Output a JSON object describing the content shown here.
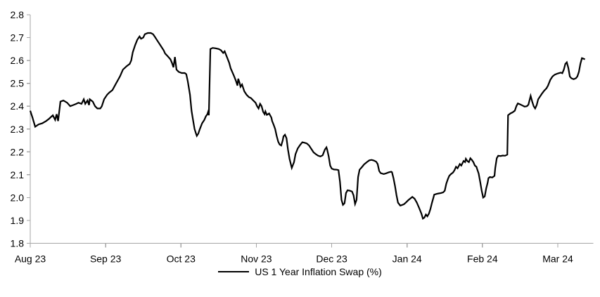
{
  "chart_data": {
    "type": "line",
    "title": "",
    "xlabel": "",
    "ylabel": "",
    "grid": false,
    "legend_position": "bottom-center",
    "axis_color": "#a6a6a6",
    "text_color": "#000000",
    "y_range": [
      1.8,
      2.8
    ],
    "y_ticks": [
      1.8,
      1.9,
      2.0,
      2.1,
      2.2,
      2.3,
      2.4,
      2.5,
      2.6,
      2.7,
      2.8
    ],
    "x_tick_labels": [
      "Aug 23",
      "Sep 23",
      "Oct 23",
      "Nov 23",
      "Dec 23",
      "Jan 24",
      "Feb 24",
      "Mar 24"
    ],
    "x_tick_positions": [
      0,
      1,
      2,
      3,
      4,
      5,
      6,
      7
    ],
    "x_range": [
      0,
      7.47
    ],
    "x_unit": "months since Aug 2023",
    "series": [
      {
        "name": "US 1 Year Inflation Swap (%)",
        "color": "#000000",
        "points": [
          [
            0.0,
            2.38
          ],
          [
            0.03,
            2.35
          ],
          [
            0.065,
            2.31
          ],
          [
            0.11,
            2.32
          ],
          [
            0.16,
            2.325
          ],
          [
            0.21,
            2.335
          ],
          [
            0.25,
            2.345
          ],
          [
            0.3,
            2.36
          ],
          [
            0.33,
            2.34
          ],
          [
            0.35,
            2.365
          ],
          [
            0.37,
            2.335
          ],
          [
            0.4,
            2.42
          ],
          [
            0.44,
            2.425
          ],
          [
            0.49,
            2.415
          ],
          [
            0.53,
            2.4
          ],
          [
            0.57,
            2.405
          ],
          [
            0.61,
            2.41
          ],
          [
            0.64,
            2.415
          ],
          [
            0.68,
            2.41
          ],
          [
            0.71,
            2.43
          ],
          [
            0.73,
            2.41
          ],
          [
            0.76,
            2.425
          ],
          [
            0.78,
            2.405
          ],
          [
            0.79,
            2.43
          ],
          [
            0.83,
            2.42
          ],
          [
            0.86,
            2.4
          ],
          [
            0.89,
            2.39
          ],
          [
            0.93,
            2.39
          ],
          [
            0.95,
            2.4
          ],
          [
            0.98,
            2.43
          ],
          [
            1.02,
            2.45
          ],
          [
            1.05,
            2.46
          ],
          [
            1.09,
            2.47
          ],
          [
            1.14,
            2.5
          ],
          [
            1.19,
            2.53
          ],
          [
            1.23,
            2.56
          ],
          [
            1.28,
            2.575
          ],
          [
            1.32,
            2.585
          ],
          [
            1.34,
            2.6
          ],
          [
            1.36,
            2.635
          ],
          [
            1.39,
            2.665
          ],
          [
            1.42,
            2.69
          ],
          [
            1.45,
            2.705
          ],
          [
            1.47,
            2.695
          ],
          [
            1.5,
            2.7
          ],
          [
            1.52,
            2.715
          ],
          [
            1.56,
            2.72
          ],
          [
            1.6,
            2.72
          ],
          [
            1.63,
            2.715
          ],
          [
            1.65,
            2.705
          ],
          [
            1.68,
            2.69
          ],
          [
            1.71,
            2.675
          ],
          [
            1.74,
            2.66
          ],
          [
            1.77,
            2.645
          ],
          [
            1.79,
            2.63
          ],
          [
            1.82,
            2.62
          ],
          [
            1.86,
            2.605
          ],
          [
            1.88,
            2.59
          ],
          [
            1.9,
            2.57
          ],
          [
            1.92,
            2.615
          ],
          [
            1.94,
            2.56
          ],
          [
            1.97,
            2.55
          ],
          [
            2.01,
            2.545
          ],
          [
            2.05,
            2.545
          ],
          [
            2.07,
            2.54
          ],
          [
            2.09,
            2.51
          ],
          [
            2.12,
            2.45
          ],
          [
            2.14,
            2.38
          ],
          [
            2.16,
            2.34
          ],
          [
            2.18,
            2.3
          ],
          [
            2.2,
            2.28
          ],
          [
            2.21,
            2.27
          ],
          [
            2.23,
            2.28
          ],
          [
            2.25,
            2.3
          ],
          [
            2.28,
            2.325
          ],
          [
            2.31,
            2.34
          ],
          [
            2.33,
            2.355
          ],
          [
            2.35,
            2.365
          ],
          [
            2.36,
            2.375
          ],
          [
            2.37,
            2.36
          ],
          [
            2.39,
            2.65
          ],
          [
            2.42,
            2.655
          ],
          [
            2.46,
            2.653
          ],
          [
            2.5,
            2.65
          ],
          [
            2.53,
            2.645
          ],
          [
            2.56,
            2.633
          ],
          [
            2.58,
            2.64
          ],
          [
            2.61,
            2.615
          ],
          [
            2.64,
            2.59
          ],
          [
            2.66,
            2.565
          ],
          [
            2.7,
            2.535
          ],
          [
            2.73,
            2.51
          ],
          [
            2.75,
            2.49
          ],
          [
            2.76,
            2.52
          ],
          [
            2.78,
            2.5
          ],
          [
            2.79,
            2.485
          ],
          [
            2.81,
            2.495
          ],
          [
            2.84,
            2.465
          ],
          [
            2.87,
            2.45
          ],
          [
            2.9,
            2.44
          ],
          [
            2.93,
            2.435
          ],
          [
            2.96,
            2.425
          ],
          [
            2.99,
            2.415
          ],
          [
            3.01,
            2.4
          ],
          [
            3.03,
            2.39
          ],
          [
            3.05,
            2.41
          ],
          [
            3.07,
            2.4
          ],
          [
            3.09,
            2.375
          ],
          [
            3.11,
            2.365
          ],
          [
            3.12,
            2.377
          ],
          [
            3.14,
            2.362
          ],
          [
            3.17,
            2.368
          ],
          [
            3.2,
            2.35
          ],
          [
            3.21,
            2.335
          ],
          [
            3.23,
            2.318
          ],
          [
            3.25,
            2.3
          ],
          [
            3.27,
            2.27
          ],
          [
            3.29,
            2.245
          ],
          [
            3.31,
            2.232
          ],
          [
            3.33,
            2.228
          ],
          [
            3.35,
            2.25
          ],
          [
            3.36,
            2.268
          ],
          [
            3.38,
            2.275
          ],
          [
            3.4,
            2.26
          ],
          [
            3.42,
            2.21
          ],
          [
            3.44,
            2.17
          ],
          [
            3.47,
            2.13
          ],
          [
            3.5,
            2.155
          ],
          [
            3.52,
            2.19
          ],
          [
            3.55,
            2.215
          ],
          [
            3.58,
            2.23
          ],
          [
            3.61,
            2.242
          ],
          [
            3.64,
            2.24
          ],
          [
            3.67,
            2.237
          ],
          [
            3.7,
            2.228
          ],
          [
            3.73,
            2.213
          ],
          [
            3.76,
            2.198
          ],
          [
            3.79,
            2.19
          ],
          [
            3.82,
            2.183
          ],
          [
            3.85,
            2.18
          ],
          [
            3.88,
            2.185
          ],
          [
            3.91,
            2.21
          ],
          [
            3.93,
            2.22
          ],
          [
            3.94,
            2.21
          ],
          [
            3.96,
            2.18
          ],
          [
            3.98,
            2.14
          ],
          [
            4.0,
            2.127
          ],
          [
            4.03,
            2.123
          ],
          [
            4.07,
            2.122
          ],
          [
            4.09,
            2.12
          ],
          [
            4.11,
            2.07
          ],
          [
            4.13,
            1.99
          ],
          [
            4.15,
            1.968
          ],
          [
            4.17,
            1.975
          ],
          [
            4.19,
            2.02
          ],
          [
            4.21,
            2.032
          ],
          [
            4.24,
            2.03
          ],
          [
            4.27,
            2.026
          ],
          [
            4.29,
            2.01
          ],
          [
            4.31,
            1.972
          ],
          [
            4.33,
            1.99
          ],
          [
            4.35,
            2.09
          ],
          [
            4.37,
            2.122
          ],
          [
            4.4,
            2.133
          ],
          [
            4.43,
            2.145
          ],
          [
            4.47,
            2.156
          ],
          [
            4.5,
            2.163
          ],
          [
            4.53,
            2.165
          ],
          [
            4.56,
            2.162
          ],
          [
            4.59,
            2.157
          ],
          [
            4.61,
            2.147
          ],
          [
            4.63,
            2.116
          ],
          [
            4.65,
            2.107
          ],
          [
            4.69,
            2.103
          ],
          [
            4.72,
            2.106
          ],
          [
            4.76,
            2.111
          ],
          [
            4.79,
            2.113
          ],
          [
            4.8,
            2.111
          ],
          [
            4.82,
            2.085
          ],
          [
            4.84,
            2.05
          ],
          [
            4.86,
            2.01
          ],
          [
            4.88,
            1.978
          ],
          [
            4.91,
            1.965
          ],
          [
            4.93,
            1.967
          ],
          [
            4.96,
            1.971
          ],
          [
            4.99,
            1.98
          ],
          [
            5.02,
            1.99
          ],
          [
            5.05,
            1.998
          ],
          [
            5.07,
            2.003
          ],
          [
            5.1,
            1.995
          ],
          [
            5.13,
            1.978
          ],
          [
            5.16,
            1.955
          ],
          [
            5.19,
            1.93
          ],
          [
            5.21,
            1.908
          ],
          [
            5.23,
            1.912
          ],
          [
            5.25,
            1.926
          ],
          [
            5.27,
            1.918
          ],
          [
            5.29,
            1.93
          ],
          [
            5.31,
            1.95
          ],
          [
            5.33,
            1.977
          ],
          [
            5.35,
            2.0
          ],
          [
            5.36,
            2.013
          ],
          [
            5.39,
            2.016
          ],
          [
            5.42,
            2.018
          ],
          [
            5.45,
            2.02
          ],
          [
            5.48,
            2.023
          ],
          [
            5.5,
            2.03
          ],
          [
            5.52,
            2.06
          ],
          [
            5.54,
            2.08
          ],
          [
            5.56,
            2.095
          ],
          [
            5.58,
            2.102
          ],
          [
            5.61,
            2.11
          ],
          [
            5.63,
            2.12
          ],
          [
            5.65,
            2.135
          ],
          [
            5.67,
            2.128
          ],
          [
            5.7,
            2.147
          ],
          [
            5.72,
            2.14
          ],
          [
            5.75,
            2.16
          ],
          [
            5.77,
            2.155
          ],
          [
            5.78,
            2.17
          ],
          [
            5.8,
            2.16
          ],
          [
            5.82,
            2.155
          ],
          [
            5.84,
            2.172
          ],
          [
            5.86,
            2.165
          ],
          [
            5.88,
            2.155
          ],
          [
            5.9,
            2.14
          ],
          [
            5.92,
            2.135
          ],
          [
            5.93,
            2.125
          ],
          [
            5.95,
            2.105
          ],
          [
            5.97,
            2.07
          ],
          [
            5.99,
            2.03
          ],
          [
            6.01,
            2.0
          ],
          [
            6.03,
            2.005
          ],
          [
            6.05,
            2.04
          ],
          [
            6.07,
            2.065
          ],
          [
            6.08,
            2.085
          ],
          [
            6.1,
            2.09
          ],
          [
            6.13,
            2.088
          ],
          [
            6.16,
            2.095
          ],
          [
            6.17,
            2.13
          ],
          [
            6.19,
            2.172
          ],
          [
            6.21,
            2.183
          ],
          [
            6.24,
            2.182
          ],
          [
            6.27,
            2.184
          ],
          [
            6.3,
            2.183
          ],
          [
            6.33,
            2.188
          ],
          [
            6.34,
            2.36
          ],
          [
            6.37,
            2.368
          ],
          [
            6.4,
            2.373
          ],
          [
            6.43,
            2.38
          ],
          [
            6.45,
            2.4
          ],
          [
            6.47,
            2.412
          ],
          [
            6.5,
            2.408
          ],
          [
            6.53,
            2.403
          ],
          [
            6.56,
            2.398
          ],
          [
            6.59,
            2.4
          ],
          [
            6.61,
            2.406
          ],
          [
            6.64,
            2.445
          ],
          [
            6.66,
            2.42
          ],
          [
            6.68,
            2.4
          ],
          [
            6.7,
            2.39
          ],
          [
            6.72,
            2.405
          ],
          [
            6.74,
            2.43
          ],
          [
            6.77,
            2.445
          ],
          [
            6.79,
            2.455
          ],
          [
            6.82,
            2.468
          ],
          [
            6.85,
            2.478
          ],
          [
            6.87,
            2.49
          ],
          [
            6.9,
            2.515
          ],
          [
            6.93,
            2.53
          ],
          [
            6.96,
            2.538
          ],
          [
            6.99,
            2.542
          ],
          [
            7.01,
            2.544
          ],
          [
            7.04,
            2.547
          ],
          [
            7.06,
            2.544
          ],
          [
            7.08,
            2.56
          ],
          [
            7.1,
            2.585
          ],
          [
            7.12,
            2.592
          ],
          [
            7.14,
            2.567
          ],
          [
            7.16,
            2.53
          ],
          [
            7.18,
            2.522
          ],
          [
            7.21,
            2.518
          ],
          [
            7.24,
            2.522
          ],
          [
            7.26,
            2.53
          ],
          [
            7.28,
            2.55
          ],
          [
            7.3,
            2.585
          ],
          [
            7.32,
            2.61
          ],
          [
            7.34,
            2.608
          ],
          [
            7.36,
            2.605
          ]
        ]
      }
    ]
  },
  "legend": {
    "label": "US 1 Year Inflation Swap (%)"
  }
}
